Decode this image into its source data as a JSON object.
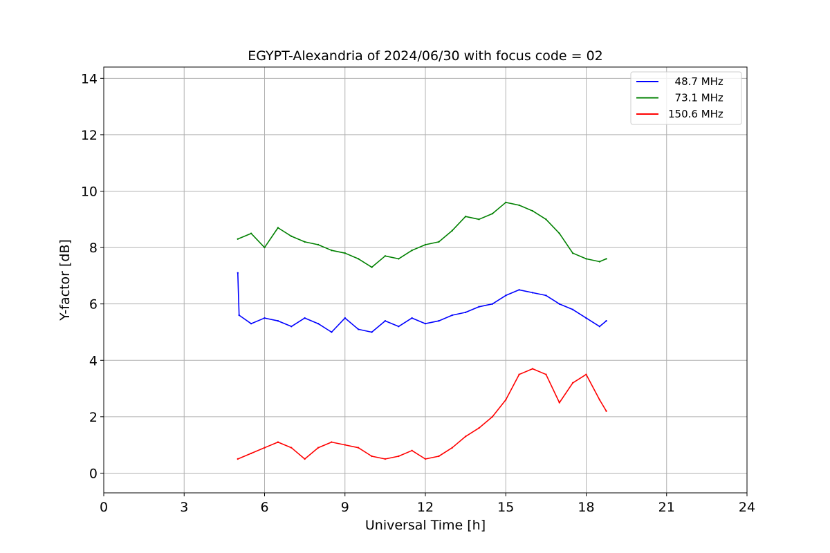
{
  "chart_data": {
    "type": "line",
    "title": "EGYPT-Alexandria of 2024/06/30 with focus code = 02",
    "xlabel": "Universal Time [h]",
    "ylabel": "Y-factor [dB]",
    "xlim": [
      0,
      24
    ],
    "ylim": [
      -0.7,
      14.4
    ],
    "xticks": [
      0,
      3,
      6,
      9,
      12,
      15,
      18,
      21,
      24
    ],
    "xtick_labels": [
      "0",
      "3",
      "6",
      "9",
      "12",
      "15",
      "18",
      "21",
      "24"
    ],
    "yticks": [
      0,
      2,
      4,
      6,
      8,
      10,
      12,
      14
    ],
    "ytick_labels": [
      "0",
      "2",
      "4",
      "6",
      "8",
      "10",
      "12",
      "14"
    ],
    "grid": true,
    "legend_position": "top-right",
    "series": [
      {
        "name": "  48.7 MHz",
        "color": "#0000ff",
        "x": [
          5.0,
          5.05,
          5.5,
          6.0,
          6.5,
          7.0,
          7.5,
          8.0,
          8.5,
          9.0,
          9.5,
          10.0,
          10.5,
          11.0,
          11.5,
          12.0,
          12.5,
          13.0,
          13.5,
          14.0,
          14.5,
          15.0,
          15.5,
          16.0,
          16.5,
          17.0,
          17.5,
          18.0,
          18.5,
          18.75
        ],
        "y": [
          7.1,
          5.6,
          5.3,
          5.5,
          5.4,
          5.2,
          5.5,
          5.3,
          5.0,
          5.5,
          5.1,
          5.0,
          5.4,
          5.2,
          5.5,
          5.3,
          5.4,
          5.6,
          5.7,
          5.9,
          6.0,
          6.3,
          6.5,
          6.4,
          6.3,
          6.0,
          5.8,
          5.5,
          5.2,
          5.4
        ]
      },
      {
        "name": "  73.1 MHz",
        "color": "#008000",
        "x": [
          5.0,
          5.5,
          6.0,
          6.5,
          7.0,
          7.5,
          8.0,
          8.5,
          9.0,
          9.5,
          10.0,
          10.5,
          11.0,
          11.5,
          12.0,
          12.5,
          13.0,
          13.5,
          14.0,
          14.5,
          15.0,
          15.5,
          16.0,
          16.5,
          17.0,
          17.5,
          18.0,
          18.5,
          18.75
        ],
        "y": [
          8.3,
          8.5,
          8.0,
          8.7,
          8.4,
          8.2,
          8.1,
          7.9,
          7.8,
          7.6,
          7.3,
          7.7,
          7.6,
          7.9,
          8.1,
          8.2,
          8.6,
          9.1,
          9.0,
          9.2,
          9.6,
          9.5,
          9.3,
          9.0,
          8.5,
          7.8,
          7.6,
          7.5,
          7.6
        ]
      },
      {
        "name": "150.6 MHz",
        "color": "#ff0000",
        "x": [
          5.0,
          5.5,
          6.0,
          6.5,
          7.0,
          7.5,
          8.0,
          8.5,
          9.0,
          9.5,
          10.0,
          10.5,
          11.0,
          11.5,
          12.0,
          12.5,
          13.0,
          13.5,
          14.0,
          14.5,
          15.0,
          15.5,
          16.0,
          16.5,
          17.0,
          17.5,
          18.0,
          18.5,
          18.75
        ],
        "y": [
          0.5,
          0.7,
          0.9,
          1.1,
          0.9,
          0.5,
          0.9,
          1.1,
          1.0,
          0.9,
          0.6,
          0.5,
          0.6,
          0.8,
          0.5,
          0.6,
          0.9,
          1.3,
          1.6,
          2.0,
          2.6,
          3.5,
          3.7,
          3.5,
          2.5,
          3.2,
          3.5,
          2.6,
          2.2
        ]
      }
    ]
  }
}
